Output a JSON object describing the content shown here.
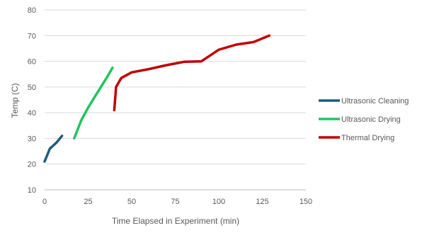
{
  "chart_data": {
    "type": "line",
    "xlabel": "Time Elapsed in Experiment (min)",
    "ylabel": "Temp (C)",
    "xlim": [
      0,
      150
    ],
    "ylim": [
      10,
      80
    ],
    "xticks": [
      0,
      25,
      50,
      75,
      100,
      125,
      150
    ],
    "yticks": [
      10,
      20,
      30,
      40,
      50,
      60,
      70,
      80
    ],
    "grid": "horizontal",
    "legend_position": "right",
    "series": [
      {
        "name": "Ultrasonic Cleaning",
        "color": "#1f5c7a",
        "points": [
          [
            0,
            21
          ],
          [
            3,
            26
          ],
          [
            7,
            28.5
          ],
          [
            10,
            31
          ]
        ]
      },
      {
        "name": "Ultrasonic Drying",
        "color": "#22c55e",
        "points": [
          [
            17,
            30
          ],
          [
            21,
            37
          ],
          [
            25,
            42
          ],
          [
            30,
            47.5
          ],
          [
            36,
            54
          ],
          [
            39,
            57.5
          ]
        ]
      },
      {
        "name": "Thermal Drying",
        "color": "#c00000",
        "points": [
          [
            40,
            41
          ],
          [
            41,
            50
          ],
          [
            44,
            53.5
          ],
          [
            50,
            55.7
          ],
          [
            60,
            57
          ],
          [
            70,
            58.5
          ],
          [
            80,
            59.8
          ],
          [
            90,
            60
          ],
          [
            100,
            64.5
          ],
          [
            110,
            66.5
          ],
          [
            120,
            67.5
          ],
          [
            129,
            70
          ]
        ]
      }
    ]
  }
}
